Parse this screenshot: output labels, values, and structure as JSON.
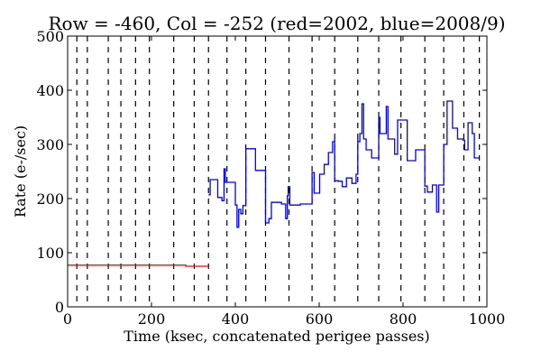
{
  "chart_data": {
    "type": "line",
    "title": "Row = -460, Col = -252 (red=2002, blue=2008/9)",
    "xlabel": "Time (ksec, concatenated perigee passes)",
    "ylabel": "Rate (e-/sec)",
    "xlim": [
      0,
      1000
    ],
    "ylim": [
      0,
      500
    ],
    "xticks": [
      "0",
      "200",
      "400",
      "600",
      "800",
      "1000"
    ],
    "yticks": [
      "0",
      "100",
      "200",
      "300",
      "400",
      "500"
    ],
    "grid": false,
    "pass_boundaries": [
      22,
      47,
      97,
      127,
      162,
      195,
      253,
      302,
      336,
      380,
      425,
      472,
      528,
      583,
      637,
      692,
      742,
      795,
      852,
      897,
      945,
      982
    ],
    "series": [
      {
        "color": "#ff0000",
        "style": "step",
        "points": [
          [
            0,
            77
          ],
          [
            282,
            77
          ],
          [
            282,
            75
          ],
          [
            336,
            75
          ]
        ]
      },
      {
        "color": "#0000ff",
        "style": "step",
        "points": [
          [
            336,
            207
          ],
          [
            340,
            235
          ],
          [
            358,
            202
          ],
          [
            368,
            196
          ],
          [
            373,
            255
          ],
          [
            376,
            230
          ],
          [
            400,
            188
          ],
          [
            404,
            147
          ],
          [
            408,
            180
          ],
          [
            413,
            172
          ],
          [
            418,
            187
          ],
          [
            425,
            292
          ],
          [
            448,
            252
          ],
          [
            463,
            252
          ],
          [
            472,
            155
          ],
          [
            480,
            163
          ],
          [
            486,
            193
          ],
          [
            510,
            190
          ],
          [
            520,
            163
          ],
          [
            524,
            205
          ],
          [
            526,
            222
          ],
          [
            530,
            188
          ],
          [
            555,
            190
          ],
          [
            576,
            190
          ],
          [
            583,
            248
          ],
          [
            588,
            210
          ],
          [
            601,
            245
          ],
          [
            612,
            263
          ],
          [
            622,
            285
          ],
          [
            632,
            305
          ],
          [
            637,
            310
          ],
          [
            637,
            233
          ],
          [
            645,
            232
          ],
          [
            655,
            222
          ],
          [
            665,
            238
          ],
          [
            678,
            228
          ],
          [
            688,
            245
          ],
          [
            692,
            310
          ],
          [
            692,
            305
          ],
          [
            697,
            320
          ],
          [
            702,
            375
          ],
          [
            706,
            310
          ],
          [
            712,
            290
          ],
          [
            725,
            275
          ],
          [
            742,
            275
          ],
          [
            742,
            350
          ],
          [
            745,
            320
          ],
          [
            760,
            370
          ],
          [
            764,
            310
          ],
          [
            780,
            282
          ],
          [
            787,
            345
          ],
          [
            797,
            345
          ],
          [
            810,
            270
          ],
          [
            830,
            290
          ],
          [
            852,
            290
          ],
          [
            852,
            223
          ],
          [
            858,
            212
          ],
          [
            870,
            225
          ],
          [
            880,
            175
          ],
          [
            885,
            225
          ],
          [
            897,
            225
          ],
          [
            897,
            300
          ],
          [
            905,
            380
          ],
          [
            918,
            330
          ],
          [
            930,
            310
          ],
          [
            943,
            308
          ],
          [
            947,
            290
          ],
          [
            955,
            340
          ],
          [
            965,
            320
          ],
          [
            970,
            275
          ],
          [
            982,
            275
          ]
        ]
      }
    ]
  }
}
